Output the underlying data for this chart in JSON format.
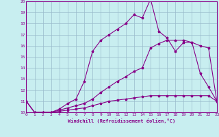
{
  "xlabel": "Windchill (Refroidissement éolien,°C)",
  "background_color": "#c8eef0",
  "line_color": "#880088",
  "grid_color": "#99bbcc",
  "x": [
    0,
    1,
    2,
    3,
    4,
    5,
    6,
    7,
    8,
    9,
    10,
    11,
    12,
    13,
    14,
    15,
    16,
    17,
    18,
    19,
    20,
    21,
    22,
    23
  ],
  "line1": [
    11,
    10,
    10,
    10,
    10.3,
    10.8,
    11.2,
    12.8,
    15.5,
    16.5,
    17.0,
    17.5,
    18.0,
    18.8,
    18.5,
    20.2,
    17.3,
    16.7,
    15.5,
    16.3,
    16.3,
    13.5,
    12.3,
    11.0
  ],
  "line2": [
    11,
    10,
    10,
    10,
    10.2,
    10.4,
    10.6,
    10.8,
    11.2,
    11.8,
    12.3,
    12.8,
    13.2,
    13.7,
    14.0,
    15.8,
    16.2,
    16.5,
    16.5,
    16.5,
    16.3,
    16.0,
    15.8,
    11.0
  ],
  "line3": [
    11,
    10,
    10,
    10,
    10.1,
    10.2,
    10.3,
    10.4,
    10.6,
    10.8,
    11.0,
    11.1,
    11.2,
    11.3,
    11.4,
    11.5,
    11.5,
    11.5,
    11.5,
    11.5,
    11.5,
    11.5,
    11.5,
    11.0
  ],
  "ylim": [
    10,
    20
  ],
  "xlim": [
    0,
    23
  ],
  "yticks": [
    10,
    11,
    12,
    13,
    14,
    15,
    16,
    17,
    18,
    19,
    20
  ],
  "xticks": [
    0,
    1,
    2,
    3,
    4,
    5,
    6,
    7,
    8,
    9,
    10,
    11,
    12,
    13,
    14,
    15,
    16,
    17,
    18,
    19,
    20,
    21,
    22,
    23
  ]
}
